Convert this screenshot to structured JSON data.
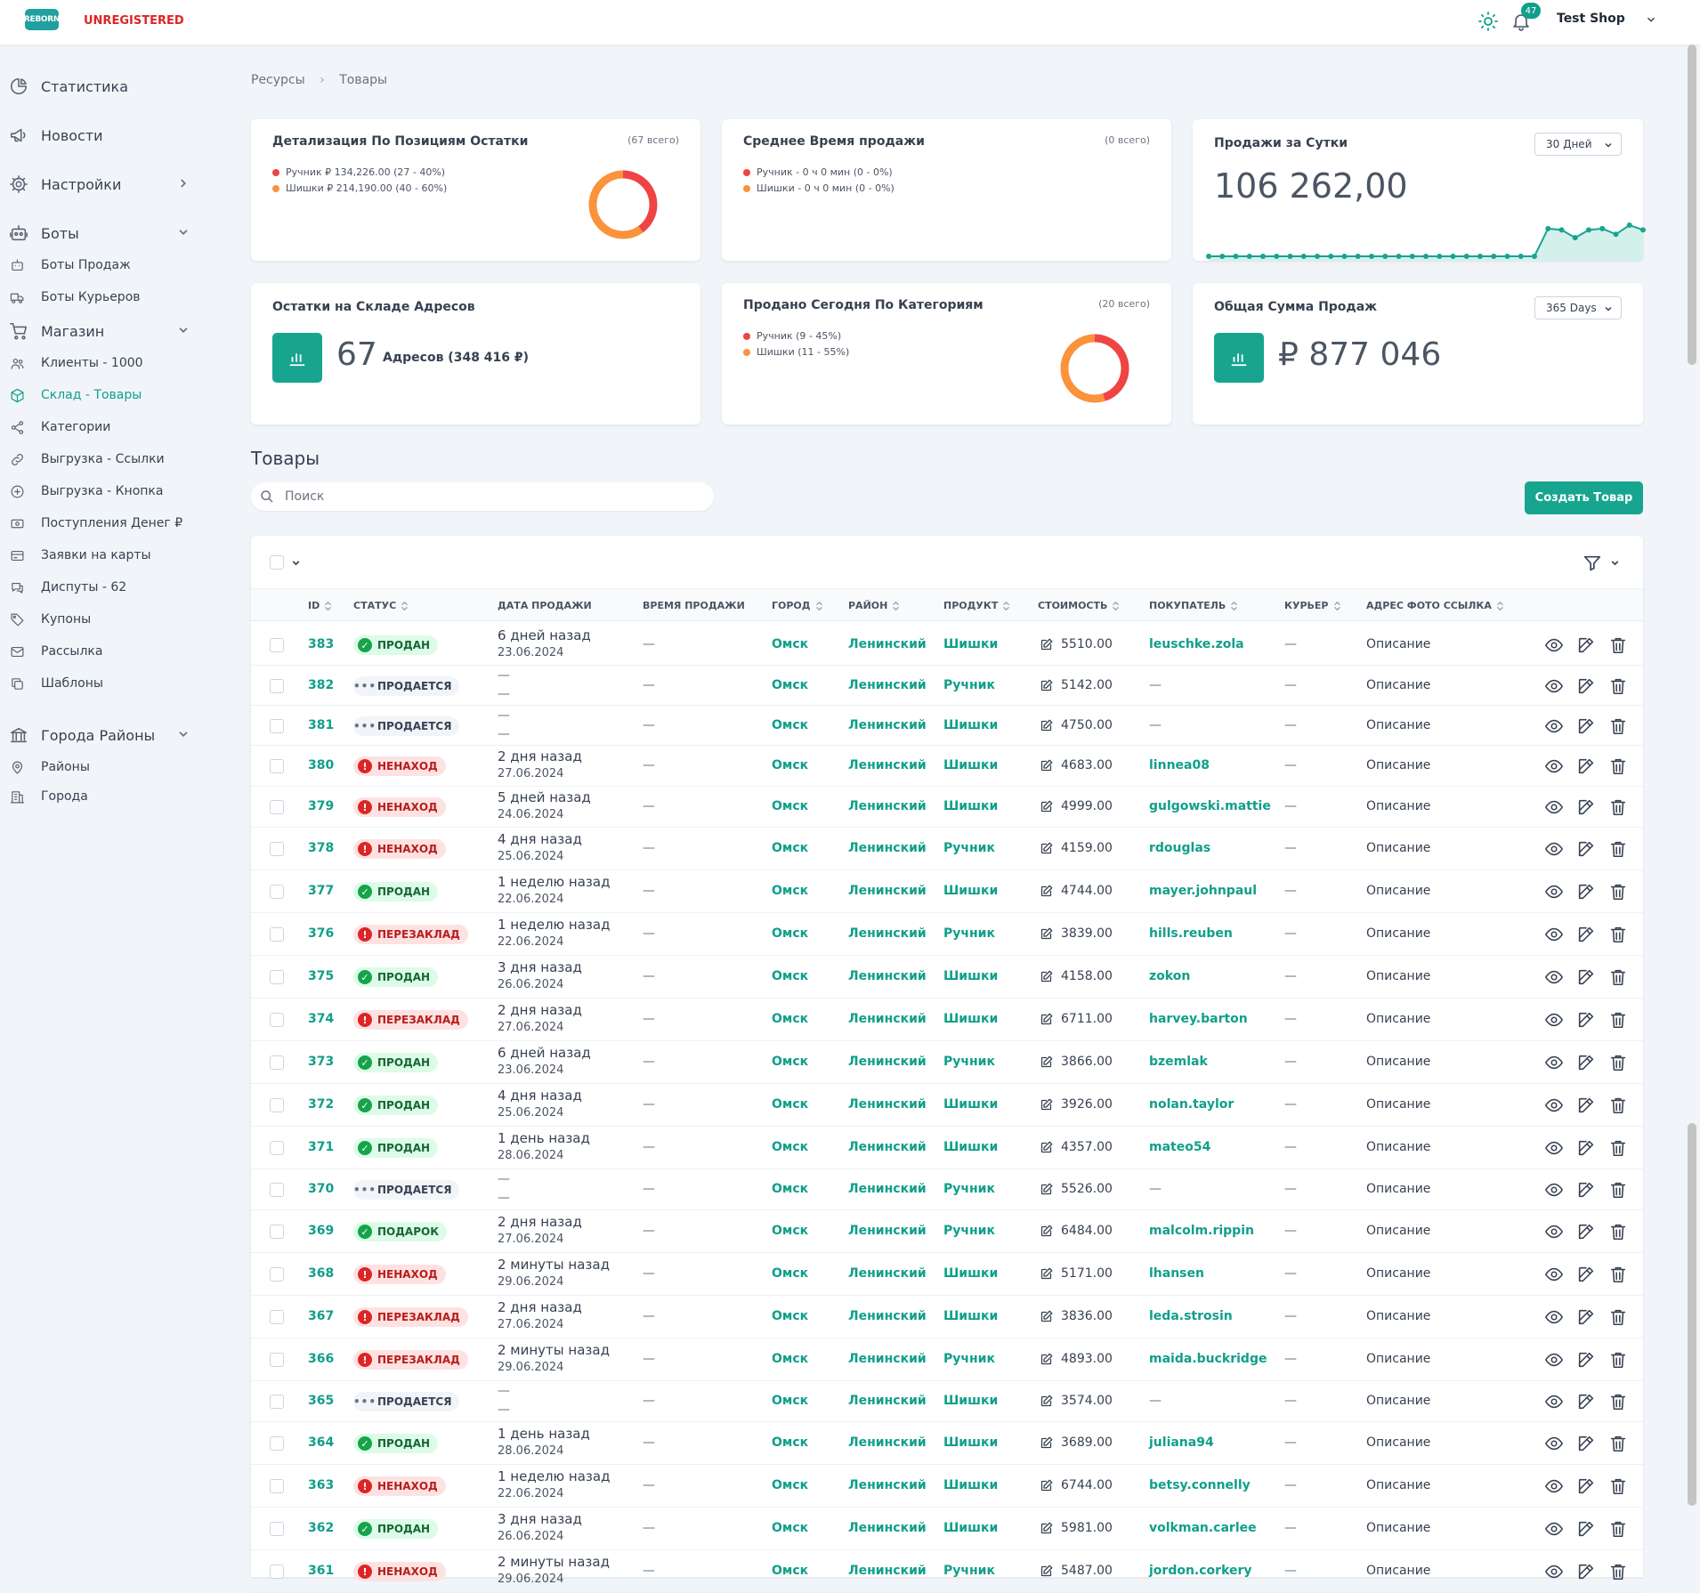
{
  "header": {
    "logo_text": "REBORN",
    "status": "UNREGISTERED",
    "notifications": "47",
    "shop_name": "Test Shop"
  },
  "sidebar": {
    "items": [
      {
        "label": "Статистика",
        "icon": "pie-chart-icon"
      },
      {
        "label": "Новости",
        "icon": "megaphone-icon"
      },
      {
        "label": "Настройки",
        "icon": "gear-icon"
      },
      {
        "label": "Боты",
        "icon": "robot-icon"
      },
      {
        "label": "Боты Продаж",
        "icon": "robot-small-icon"
      },
      {
        "label": "Боты Курьеров",
        "icon": "truck-icon"
      },
      {
        "label": "Магазин",
        "icon": "cart-icon"
      },
      {
        "label": "Клиенты - 1000",
        "icon": "users-icon"
      },
      {
        "label": "Склад - Товары",
        "icon": "box-icon"
      },
      {
        "label": "Категории",
        "icon": "share-icon"
      },
      {
        "label": "Выгрузка - Ссылки",
        "icon": "link-icon"
      },
      {
        "label": "Выгрузка - Кнопка",
        "icon": "plus-circle-icon"
      },
      {
        "label": "Поступления Денег ₽",
        "icon": "money-icon"
      },
      {
        "label": "Заявки на карты",
        "icon": "card-icon"
      },
      {
        "label": "Диспуты - 62",
        "icon": "chat-icon"
      },
      {
        "label": "Купоны",
        "icon": "tag-icon"
      },
      {
        "label": "Рассылка",
        "icon": "mail-icon"
      },
      {
        "label": "Шаблоны",
        "icon": "copy-icon"
      },
      {
        "label": "Города Районы",
        "icon": "bank-icon"
      },
      {
        "label": "Районы",
        "icon": "pin-icon"
      },
      {
        "label": "Города",
        "icon": "building-icon"
      }
    ]
  },
  "breadcrumb": {
    "parent": "Ресурсы",
    "current": "Товары"
  },
  "cards": {
    "detail": {
      "title": "Детализация По Позициям Остатки",
      "count": "(67 всего)",
      "legend": [
        "Ручник ₽ 134,226.00 (27 - 40%)",
        "Шишки ₽ 214,190.00 (40 - 60%)"
      ],
      "shares": [
        40,
        60
      ]
    },
    "avg_time": {
      "title": "Среднее Время продажи",
      "count": "(0 всего)",
      "legend": [
        "Ручник - 0 ч 0 мин (0 - 0%)",
        "Шишки - 0 ч 0 мин (0 - 0%)"
      ]
    },
    "daily": {
      "title": "Продажи за Сутки",
      "period": "30 Дней",
      "value": "106 262,00",
      "sparkline": [
        0,
        0,
        0,
        0,
        0,
        0,
        0,
        0,
        0,
        0,
        0,
        0,
        0,
        0,
        0,
        0,
        0,
        0,
        0,
        0,
        0,
        0,
        0,
        0,
        0,
        0.82,
        0.78,
        0.55,
        0.78,
        0.82,
        0.65,
        0.92,
        0.78
      ]
    },
    "stock": {
      "title": "Остатки на Складе Адресов",
      "value": "67",
      "sub": "Адресов (348 416 ₽)"
    },
    "today": {
      "title": "Продано Сегодня По Категориям",
      "count": "(20 всего)",
      "legend": [
        "Ручник (9 - 45%)",
        "Шишки (11 - 55%)"
      ],
      "shares": [
        45,
        55
      ]
    },
    "total": {
      "title": "Общая Сумма Продаж",
      "period": "365 Days",
      "value": "₽ 877 046"
    }
  },
  "colors": {
    "accent": "#17a590",
    "series1": "#ef4444",
    "series2": "#fb923c"
  },
  "table": {
    "section_title": "Товары",
    "search_placeholder": "Поиск",
    "create_label": "Создать Товар",
    "columns": [
      "ID",
      "СТАТУС",
      "ДАТА ПРОДАЖИ",
      "ВРЕМЯ ПРОДАЖИ",
      "ГОРОД",
      "РАЙОН",
      "ПРОДУКТ",
      "СТОИМОСТЬ",
      "ПОКУПАТЕЛЬ",
      "КУРЬЕР",
      "АДРЕС ФОТО ССЫЛКА"
    ],
    "rows": [
      {
        "id": "383",
        "status": "ПРОДАН",
        "kind": "sold",
        "date1": "6 дней назад",
        "date2": "23.06.2024",
        "time": "—",
        "city": "Омск",
        "district": "Ленинский",
        "product": "Шишки",
        "price": "5510.00",
        "buyer": "leuschke.zola",
        "courier": "—",
        "addr": "Описание"
      },
      {
        "id": "382",
        "status": "ПРОДАЕТСЯ",
        "kind": "sale",
        "date1": "—",
        "date2": "—",
        "time": "—",
        "city": "Омск",
        "district": "Ленинский",
        "product": "Ручник",
        "price": "5142.00",
        "buyer": "—",
        "courier": "—",
        "addr": "Описание"
      },
      {
        "id": "381",
        "status": "ПРОДАЕТСЯ",
        "kind": "sale",
        "date1": "—",
        "date2": "—",
        "time": "—",
        "city": "Омск",
        "district": "Ленинский",
        "product": "Шишки",
        "price": "4750.00",
        "buyer": "—",
        "courier": "—",
        "addr": "Описание"
      },
      {
        "id": "380",
        "status": "НЕНАХОД",
        "kind": "bad",
        "date1": "2 дня назад",
        "date2": "27.06.2024",
        "time": "—",
        "city": "Омск",
        "district": "Ленинский",
        "product": "Шишки",
        "price": "4683.00",
        "buyer": "linnea08",
        "courier": "—",
        "addr": "Описание"
      },
      {
        "id": "379",
        "status": "НЕНАХОД",
        "kind": "bad",
        "date1": "5 дней назад",
        "date2": "24.06.2024",
        "time": "—",
        "city": "Омск",
        "district": "Ленинский",
        "product": "Шишки",
        "price": "4999.00",
        "buyer": "gulgowski.mattie",
        "courier": "—",
        "addr": "Описание"
      },
      {
        "id": "378",
        "status": "НЕНАХОД",
        "kind": "bad",
        "date1": "4 дня назад",
        "date2": "25.06.2024",
        "time": "—",
        "city": "Омск",
        "district": "Ленинский",
        "product": "Ручник",
        "price": "4159.00",
        "buyer": "rdouglas",
        "courier": "—",
        "addr": "Описание"
      },
      {
        "id": "377",
        "status": "ПРОДАН",
        "kind": "sold",
        "date1": "1 неделю назад",
        "date2": "22.06.2024",
        "time": "—",
        "city": "Омск",
        "district": "Ленинский",
        "product": "Шишки",
        "price": "4744.00",
        "buyer": "mayer.johnpaul",
        "courier": "—",
        "addr": "Описание"
      },
      {
        "id": "376",
        "status": "ПЕРЕЗАКЛАД",
        "kind": "bad",
        "date1": "1 неделю назад",
        "date2": "22.06.2024",
        "time": "—",
        "city": "Омск",
        "district": "Ленинский",
        "product": "Ручник",
        "price": "3839.00",
        "buyer": "hills.reuben",
        "courier": "—",
        "addr": "Описание"
      },
      {
        "id": "375",
        "status": "ПРОДАН",
        "kind": "sold",
        "date1": "3 дня назад",
        "date2": "26.06.2024",
        "time": "—",
        "city": "Омск",
        "district": "Ленинский",
        "product": "Шишки",
        "price": "4158.00",
        "buyer": "zokon",
        "courier": "—",
        "addr": "Описание"
      },
      {
        "id": "374",
        "status": "ПЕРЕЗАКЛАД",
        "kind": "bad",
        "date1": "2 дня назад",
        "date2": "27.06.2024",
        "time": "—",
        "city": "Омск",
        "district": "Ленинский",
        "product": "Шишки",
        "price": "6711.00",
        "buyer": "harvey.barton",
        "courier": "—",
        "addr": "Описание"
      },
      {
        "id": "373",
        "status": "ПРОДАН",
        "kind": "sold",
        "date1": "6 дней назад",
        "date2": "23.06.2024",
        "time": "—",
        "city": "Омск",
        "district": "Ленинский",
        "product": "Ручник",
        "price": "3866.00",
        "buyer": "bzemlak",
        "courier": "—",
        "addr": "Описание"
      },
      {
        "id": "372",
        "status": "ПРОДАН",
        "kind": "sold",
        "date1": "4 дня назад",
        "date2": "25.06.2024",
        "time": "—",
        "city": "Омск",
        "district": "Ленинский",
        "product": "Шишки",
        "price": "3926.00",
        "buyer": "nolan.taylor",
        "courier": "—",
        "addr": "Описание"
      },
      {
        "id": "371",
        "status": "ПРОДАН",
        "kind": "sold",
        "date1": "1 день назад",
        "date2": "28.06.2024",
        "time": "—",
        "city": "Омск",
        "district": "Ленинский",
        "product": "Шишки",
        "price": "4357.00",
        "buyer": "mateo54",
        "courier": "—",
        "addr": "Описание"
      },
      {
        "id": "370",
        "status": "ПРОДАЕТСЯ",
        "kind": "sale",
        "date1": "—",
        "date2": "—",
        "time": "—",
        "city": "Омск",
        "district": "Ленинский",
        "product": "Ручник",
        "price": "5526.00",
        "buyer": "—",
        "courier": "—",
        "addr": "Описание"
      },
      {
        "id": "369",
        "status": "ПОДАРОК",
        "kind": "sold",
        "date1": "2 дня назад",
        "date2": "27.06.2024",
        "time": "—",
        "city": "Омск",
        "district": "Ленинский",
        "product": "Ручник",
        "price": "6484.00",
        "buyer": "malcolm.rippin",
        "courier": "—",
        "addr": "Описание"
      },
      {
        "id": "368",
        "status": "НЕНАХОД",
        "kind": "bad",
        "date1": "2 минуты назад",
        "date2": "29.06.2024",
        "time": "—",
        "city": "Омск",
        "district": "Ленинский",
        "product": "Шишки",
        "price": "5171.00",
        "buyer": "lhansen",
        "courier": "—",
        "addr": "Описание"
      },
      {
        "id": "367",
        "status": "ПЕРЕЗАКЛАД",
        "kind": "bad",
        "date1": "2 дня назад",
        "date2": "27.06.2024",
        "time": "—",
        "city": "Омск",
        "district": "Ленинский",
        "product": "Шишки",
        "price": "3836.00",
        "buyer": "leda.strosin",
        "courier": "—",
        "addr": "Описание"
      },
      {
        "id": "366",
        "status": "ПЕРЕЗАКЛАД",
        "kind": "bad",
        "date1": "2 минуты назад",
        "date2": "29.06.2024",
        "time": "—",
        "city": "Омск",
        "district": "Ленинский",
        "product": "Ручник",
        "price": "4893.00",
        "buyer": "maida.buckridge",
        "courier": "—",
        "addr": "Описание"
      },
      {
        "id": "365",
        "status": "ПРОДАЕТСЯ",
        "kind": "sale",
        "date1": "—",
        "date2": "—",
        "time": "—",
        "city": "Омск",
        "district": "Ленинский",
        "product": "Шишки",
        "price": "3574.00",
        "buyer": "—",
        "courier": "—",
        "addr": "Описание"
      },
      {
        "id": "364",
        "status": "ПРОДАН",
        "kind": "sold",
        "date1": "1 день назад",
        "date2": "28.06.2024",
        "time": "—",
        "city": "Омск",
        "district": "Ленинский",
        "product": "Шишки",
        "price": "3689.00",
        "buyer": "juliana94",
        "courier": "—",
        "addr": "Описание"
      },
      {
        "id": "363",
        "status": "НЕНАХОД",
        "kind": "bad",
        "date1": "1 неделю назад",
        "date2": "22.06.2024",
        "time": "—",
        "city": "Омск",
        "district": "Ленинский",
        "product": "Шишки",
        "price": "6744.00",
        "buyer": "betsy.connelly",
        "courier": "—",
        "addr": "Описание"
      },
      {
        "id": "362",
        "status": "ПРОДАН",
        "kind": "sold",
        "date1": "3 дня назад",
        "date2": "26.06.2024",
        "time": "—",
        "city": "Омск",
        "district": "Ленинский",
        "product": "Шишки",
        "price": "5981.00",
        "buyer": "volkman.carlee",
        "courier": "—",
        "addr": "Описание"
      },
      {
        "id": "361",
        "status": "НЕНАХОД",
        "kind": "bad",
        "date1": "2 минуты назад",
        "date2": "29.06.2024",
        "time": "—",
        "city": "Омск",
        "district": "Ленинский",
        "product": "Ручник",
        "price": "5487.00",
        "buyer": "jordon.corkery",
        "courier": "—",
        "addr": "Описание"
      }
    ]
  }
}
